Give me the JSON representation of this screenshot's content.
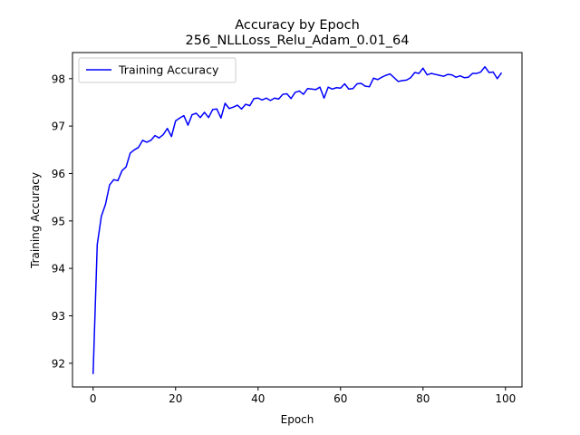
{
  "chart_data": {
    "type": "line",
    "title": "Accuracy by Epoch",
    "subtitle": "256_NLLLoss_Relu_Adam_0.01_64",
    "xlabel": "Epoch",
    "ylabel": "Training Accuracy",
    "xlim": [
      -5,
      104
    ],
    "ylim": [
      91.5,
      98.55
    ],
    "xticks": [
      0,
      20,
      40,
      60,
      80,
      100
    ],
    "yticks": [
      92,
      93,
      94,
      95,
      96,
      97,
      98
    ],
    "grid": false,
    "legend_position": "top-left",
    "series": [
      {
        "name": "Training Accuracy",
        "color": "#0000ff",
        "x": [
          0,
          1,
          2,
          3,
          4,
          5,
          6,
          7,
          8,
          9,
          10,
          11,
          12,
          13,
          14,
          15,
          16,
          17,
          18,
          19,
          20,
          21,
          22,
          23,
          24,
          25,
          26,
          27,
          28,
          29,
          30,
          31,
          32,
          33,
          34,
          35,
          36,
          37,
          38,
          39,
          40,
          41,
          42,
          43,
          44,
          45,
          46,
          47,
          48,
          49,
          50,
          51,
          52,
          53,
          54,
          55,
          56,
          57,
          58,
          59,
          60,
          61,
          62,
          63,
          64,
          65,
          66,
          67,
          68,
          69,
          70,
          71,
          72,
          73,
          74,
          75,
          76,
          77,
          78,
          79,
          80,
          81,
          82,
          83,
          84,
          85,
          86,
          87,
          88,
          89,
          90,
          91,
          92,
          93,
          94,
          95,
          96,
          97,
          98,
          99
        ],
        "values": [
          91.78,
          94.5,
          95.1,
          95.35,
          95.76,
          95.87,
          95.85,
          96.06,
          96.14,
          96.43,
          96.5,
          96.55,
          96.7,
          96.66,
          96.7,
          96.8,
          96.75,
          96.82,
          96.95,
          96.78,
          97.11,
          97.17,
          97.22,
          97.02,
          97.24,
          97.27,
          97.18,
          97.29,
          97.18,
          97.35,
          97.36,
          97.17,
          97.48,
          97.37,
          97.4,
          97.44,
          97.36,
          97.46,
          97.43,
          97.58,
          97.59,
          97.55,
          97.59,
          97.54,
          97.59,
          97.57,
          97.67,
          97.68,
          97.58,
          97.71,
          97.74,
          97.67,
          97.79,
          97.78,
          97.77,
          97.82,
          97.59,
          97.82,
          97.78,
          97.81,
          97.8,
          97.89,
          97.78,
          97.79,
          97.89,
          97.9,
          97.84,
          97.83,
          98.01,
          97.98,
          98.03,
          98.07,
          98.1,
          98.02,
          97.94,
          97.96,
          97.97,
          98.02,
          98.13,
          98.11,
          98.22,
          98.08,
          98.11,
          98.09,
          98.07,
          98.05,
          98.09,
          98.08,
          98.03,
          98.06,
          98.02,
          98.03,
          98.11,
          98.11,
          98.14,
          98.25,
          98.13,
          98.14,
          98.0,
          98.12
        ]
      }
    ]
  }
}
